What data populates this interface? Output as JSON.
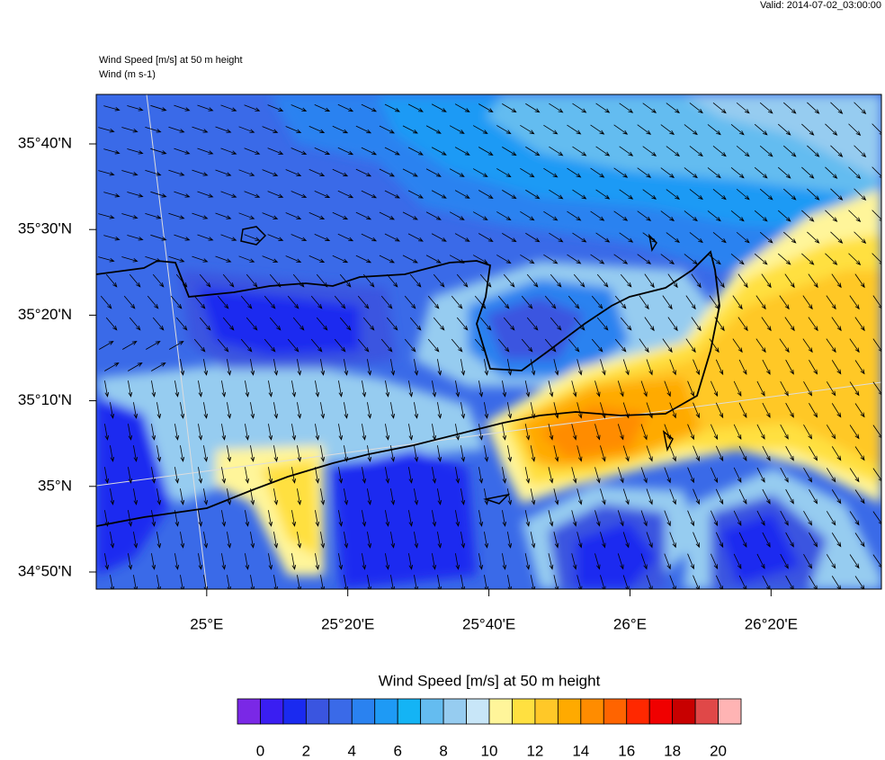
{
  "header": {
    "valid": "Valid: 2014-07-02_03:00:00",
    "field_title": "Wind Speed [m/s] at 50 m height",
    "vector_title": "Wind   (m s-1)"
  },
  "map": {
    "xlim": [
      24.739,
      26.594
    ],
    "ylim": [
      34.8,
      35.763
    ],
    "xticks": [
      {
        "value": 25,
        "label": "25°E"
      },
      {
        "value": 25.3333,
        "label": "25°20'E"
      },
      {
        "value": 25.6667,
        "label": "25°40'E"
      },
      {
        "value": 26,
        "label": "26°E"
      },
      {
        "value": 26.3333,
        "label": "26°20'E"
      }
    ],
    "yticks": [
      {
        "value": 34.8333,
        "label": "34°50'N"
      },
      {
        "value": 35,
        "label": "35°N"
      },
      {
        "value": 35.1667,
        "label": "35°10'N"
      },
      {
        "value": 35.3333,
        "label": "35°20'N"
      },
      {
        "value": 35.5,
        "label": "35°30'N"
      },
      {
        "value": 35.6667,
        "label": "35°40'N"
      }
    ]
  },
  "colorbar": {
    "title": "Wind Speed [m/s] at 50 m height",
    "colors": [
      "#7a28e6",
      "#3a1ef2",
      "#1a2af0",
      "#3a55e0",
      "#3a6ae8",
      "#2a82f0",
      "#1e9af5",
      "#14b4f5",
      "#64bcf0",
      "#96ccf0",
      "#c8e6f8",
      "#fff59a",
      "#ffe040",
      "#ffc828",
      "#ffaa00",
      "#ff8c00",
      "#ff6400",
      "#ff2800",
      "#f00000",
      "#c80000",
      "#e04848",
      "#ffb4b4"
    ],
    "ticks": [
      0,
      2,
      4,
      6,
      8,
      10,
      12,
      14,
      16,
      18,
      20
    ]
  }
}
